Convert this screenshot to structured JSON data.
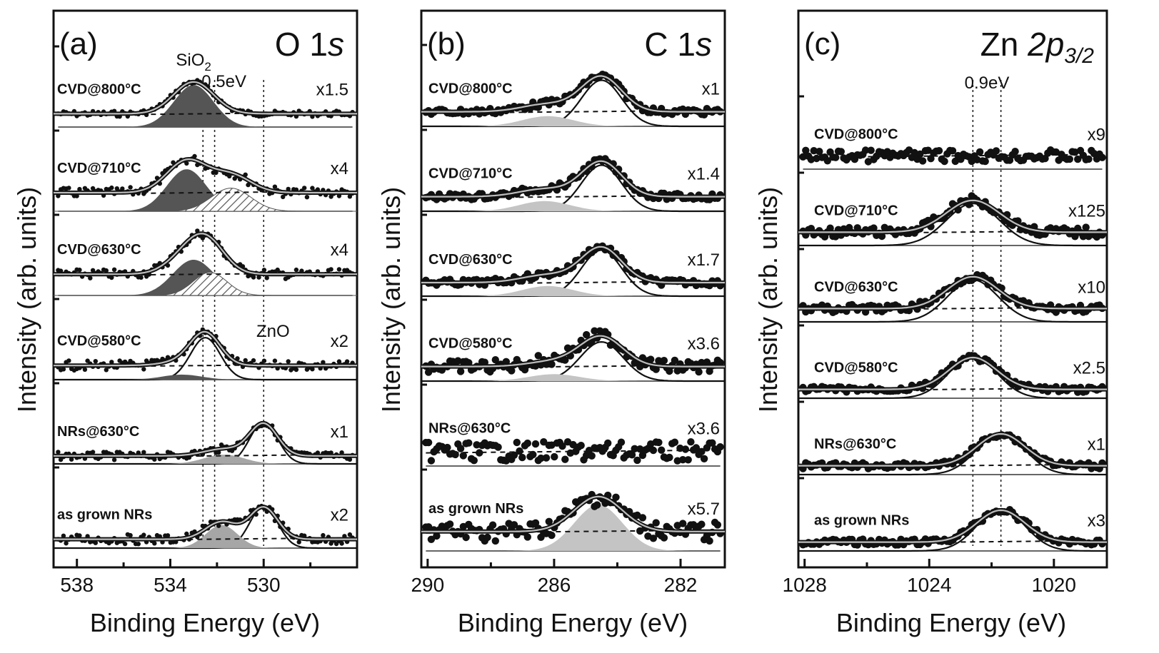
{
  "figure": {
    "y_axis_title": "Intensity (arb. units)",
    "x_axis_title": "Binding Energy (eV)"
  },
  "colors": {
    "dark_component": "#555555",
    "mid_component": "#a6a6a6",
    "light_component": "#c4c4c4",
    "data_points": "#111111"
  },
  "chart_data": [
    {
      "type": "line",
      "panel": "(a)",
      "title": "O 1s",
      "xlabel": "Binding Energy (eV)",
      "ylabel": "Intensity (arb. units)",
      "x_reversed": true,
      "xlim": [
        539.0,
        526.0
      ],
      "x_ticks": [
        538,
        534,
        530
      ],
      "grid": false,
      "annotations": {
        "sio2_label": "SiO",
        "sio2_sub": "2",
        "shift_label": "0.5eV",
        "zno_label": "ZnO"
      },
      "reference_lines": [
        532.6,
        532.1,
        530.0
      ],
      "series": [
        {
          "name": "CVD@800°C",
          "scale": "x1.5",
          "background": 0.3,
          "components": [
            {
              "center": 533.0,
              "fwhm": 2.0,
              "height": 1.0,
              "style": "dark"
            }
          ],
          "data_noise": 0.03
        },
        {
          "name": "CVD@710°C",
          "scale": "x4",
          "background": 0.42,
          "components": [
            {
              "center": 533.3,
              "fwhm": 2.0,
              "height": 1.0,
              "style": "dark"
            },
            {
              "center": 531.4,
              "fwhm": 2.0,
              "height": 0.55,
              "style": "hatched"
            }
          ],
          "data_noise": 0.05
        },
        {
          "name": "CVD@630°C",
          "scale": "x4",
          "background": 0.48,
          "components": [
            {
              "center": 533.0,
              "fwhm": 2.1,
              "height": 0.85,
              "style": "dark"
            },
            {
              "center": 532.3,
              "fwhm": 1.7,
              "height": 0.55,
              "style": "hatched"
            }
          ],
          "data_noise": 0.05
        },
        {
          "name": "CVD@580°C",
          "scale": "x2",
          "background": 0.32,
          "components": [
            {
              "center": 532.5,
              "fwhm": 1.5,
              "height": 1.0,
              "style": "line"
            },
            {
              "center": 533.5,
              "fwhm": 2.0,
              "height": 0.12,
              "style": "dark"
            }
          ],
          "data_noise": 0.05
        },
        {
          "name": "NRs@630°C",
          "scale": "x1",
          "background": 0.18,
          "components": [
            {
              "center": 530.0,
              "fwhm": 1.4,
              "height": 1.0,
              "style": "line"
            },
            {
              "center": 531.7,
              "fwhm": 2.0,
              "height": 0.22,
              "style": "mid"
            }
          ],
          "data_noise": 0.04
        },
        {
          "name": "as grown NRs",
          "scale": "x2",
          "background": 0.2,
          "components": [
            {
              "center": 530.0,
              "fwhm": 1.4,
              "height": 1.0,
              "style": "line"
            },
            {
              "center": 531.8,
              "fwhm": 1.6,
              "height": 0.55,
              "style": "mid"
            }
          ],
          "data_noise": 0.05
        }
      ]
    },
    {
      "type": "line",
      "panel": "(b)",
      "title": "C 1s",
      "xlabel": "Binding Energy (eV)",
      "ylabel": "",
      "x_reversed": true,
      "xlim": [
        290.2,
        280.6
      ],
      "x_ticks": [
        290,
        286,
        282
      ],
      "grid": false,
      "series": [
        {
          "name": "CVD@800°C",
          "scale": "x1",
          "background": 0.3,
          "components": [
            {
              "center": 284.5,
              "fwhm": 1.5,
              "height": 1.0,
              "style": "line"
            },
            {
              "center": 286.2,
              "fwhm": 1.9,
              "height": 0.22,
              "style": "light"
            }
          ],
          "data_noise": 0.03
        },
        {
          "name": "CVD@710°C",
          "scale": "x1.4",
          "background": 0.3,
          "components": [
            {
              "center": 284.5,
              "fwhm": 1.5,
              "height": 1.0,
              "style": "line"
            },
            {
              "center": 286.3,
              "fwhm": 1.9,
              "height": 0.22,
              "style": "light"
            }
          ],
          "data_noise": 0.03
        },
        {
          "name": "CVD@630°C",
          "scale": "x1.7",
          "background": 0.28,
          "components": [
            {
              "center": 284.5,
              "fwhm": 1.5,
              "height": 1.0,
              "style": "line"
            },
            {
              "center": 286.2,
              "fwhm": 1.9,
              "height": 0.22,
              "style": "light"
            }
          ],
          "data_noise": 0.03
        },
        {
          "name": "CVD@580°C",
          "scale": "x3.6",
          "background": 0.3,
          "components": [
            {
              "center": 284.5,
              "fwhm": 1.6,
              "height": 0.85,
              "style": "line"
            },
            {
              "center": 286.0,
              "fwhm": 1.9,
              "height": 0.15,
              "style": "light"
            }
          ],
          "data_noise": 0.06
        },
        {
          "name": "NRs@630°C",
          "scale": "x3.6",
          "background": 0.3,
          "components": [],
          "data_noise": 0.09
        },
        {
          "name": "as grown NRs",
          "scale": "x5.7",
          "background": 0.4,
          "components": [
            {
              "center": 284.6,
              "fwhm": 1.8,
              "height": 1.0,
              "style": "light"
            }
          ],
          "data_noise": 0.09
        }
      ]
    },
    {
      "type": "line",
      "panel": "(c)",
      "title": "Zn 2p",
      "title_sub": "3/2",
      "xlabel": "Binding Energy (eV)",
      "ylabel": "Intensity (arb. units)",
      "x_reversed": true,
      "xlim": [
        1028.2,
        1018.3
      ],
      "x_ticks": [
        1028,
        1024,
        1020
      ],
      "grid": false,
      "annotations": {
        "shift_label": "0.9eV"
      },
      "reference_lines": [
        1022.6,
        1021.7
      ],
      "series": [
        {
          "name": "CVD@800°C",
          "scale": "x9",
          "background": 0.3,
          "components": [],
          "data_noise": 0.06
        },
        {
          "name": "CVD@710°C",
          "scale": "x125",
          "background": 0.3,
          "components": [
            {
              "center": 1022.6,
              "fwhm": 2.0,
              "height": 1.0,
              "style": "line"
            }
          ],
          "data_noise": 0.05
        },
        {
          "name": "CVD@630°C",
          "scale": "x10",
          "background": 0.3,
          "components": [
            {
              "center": 1022.6,
              "fwhm": 1.9,
              "height": 1.0,
              "style": "line"
            }
          ],
          "data_noise": 0.04
        },
        {
          "name": "CVD@580°C",
          "scale": "x2.5",
          "background": 0.2,
          "components": [
            {
              "center": 1022.6,
              "fwhm": 1.8,
              "height": 1.0,
              "style": "line"
            }
          ],
          "data_noise": 0.03
        },
        {
          "name": "NRs@630°C",
          "scale": "x1",
          "background": 0.2,
          "components": [
            {
              "center": 1021.7,
              "fwhm": 1.8,
              "height": 1.0,
              "style": "line"
            }
          ],
          "data_noise": 0.03
        },
        {
          "name": "as grown NRs",
          "scale": "x3",
          "background": 0.2,
          "components": [
            {
              "center": 1021.7,
              "fwhm": 1.8,
              "height": 1.0,
              "style": "line"
            }
          ],
          "data_noise": 0.03
        }
      ]
    }
  ]
}
